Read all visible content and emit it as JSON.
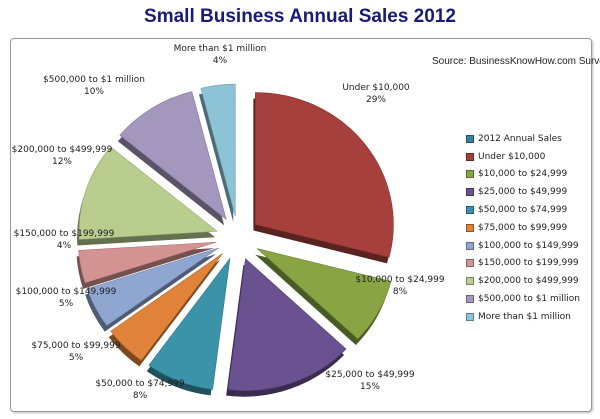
{
  "chart_data": {
    "type": "pie",
    "title": "Small Business Annual Sales 2012",
    "source": "Source: BusinessKnowHow.com Survey",
    "series_name": "2012 Annual Sales",
    "series_color": "#3b7f9c",
    "legend_position": "right",
    "exploded": true,
    "style": "3d",
    "categories": [
      "Under $10,000",
      "$10,000 to $24,999",
      "$25,000 to $49,999",
      "$50,000 to $74,999",
      "$75,000 to $99,999",
      "$100,000 to $149,999",
      "$150,000 to $199,999",
      "$200,000 to $499,999",
      "$500,000 to $1 million",
      "More than $1 million"
    ],
    "values": [
      29,
      8,
      15,
      8,
      5,
      5,
      4,
      12,
      10,
      4
    ],
    "value_labels": [
      "29%",
      "8%",
      "15%",
      "8%",
      "5%",
      "5%",
      "4%",
      "12%",
      "10%",
      "4%"
    ],
    "colors": [
      "#a5403d",
      "#88a443",
      "#6a5190",
      "#3a93a8",
      "#e0823a",
      "#8fa6d0",
      "#d49393",
      "#b9cd8f",
      "#a497bd",
      "#8dc3d6"
    ]
  }
}
